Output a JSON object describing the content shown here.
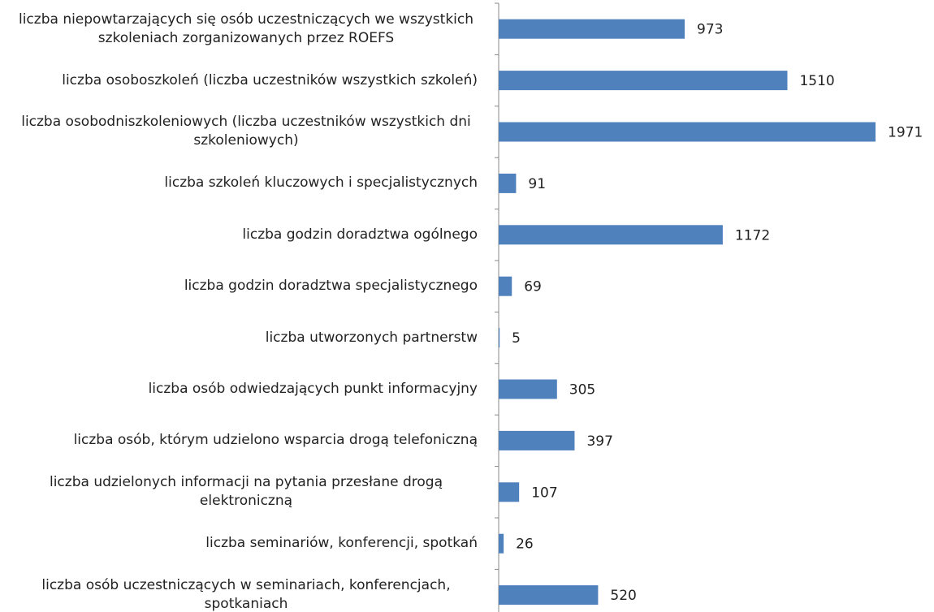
{
  "chart_data": {
    "type": "barh",
    "categories": [
      "liczba niepowtarzających się osób uczestniczących we wszystkich szkoleniach zorganizowanych przez ROEFS",
      "liczba osoboszkoleń (liczba uczestników wszystkich szkoleń)",
      "liczba osobodniszkoleniowych (liczba uczestników wszystkich dni szkoleniowych)",
      "liczba szkoleń kluczowych i specjalistycznych",
      "liczba godzin doradztwa ogólnego",
      "liczba godzin doradztwa specjalistycznego",
      "liczba utworzonych partnerstw",
      "liczba osób odwiedzających punkt informacyjny",
      "liczba osób, którym udzielono wsparcia drogą telefoniczną",
      "liczba udzielonych informacji na pytania przesłane drogą elektroniczną",
      "liczba seminariów, konferencji, spotkań",
      "liczba osób uczestniczących w seminariach, konferencjach, spotkaniach"
    ],
    "values": [
      973,
      1510,
      1971,
      91,
      1172,
      69,
      5,
      305,
      397,
      107,
      26,
      520
    ],
    "color": "#4f81bd"
  }
}
